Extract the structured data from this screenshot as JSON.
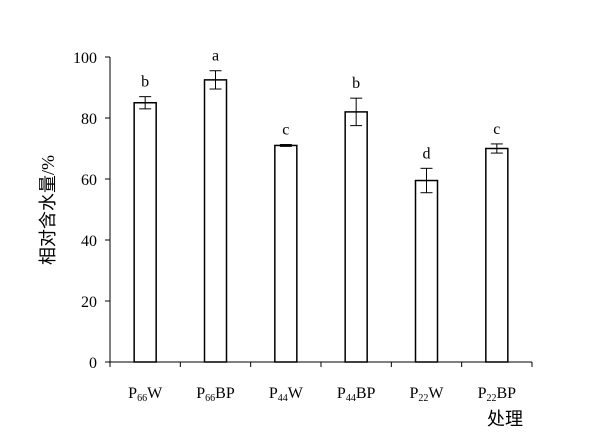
{
  "chart_data": {
    "type": "bar",
    "categories": [
      {
        "label": "P66W",
        "parts": [
          {
            "t": "P",
            "sub": false
          },
          {
            "t": "66",
            "sub": true
          },
          {
            "t": "W",
            "sub": false
          }
        ]
      },
      {
        "label": "P66BP",
        "parts": [
          {
            "t": "P",
            "sub": false
          },
          {
            "t": "66",
            "sub": true
          },
          {
            "t": "BP",
            "sub": false
          }
        ]
      },
      {
        "label": "P44W",
        "parts": [
          {
            "t": "P",
            "sub": false
          },
          {
            "t": "44",
            "sub": true
          },
          {
            "t": "W",
            "sub": false
          }
        ]
      },
      {
        "label": "P44BP",
        "parts": [
          {
            "t": "P",
            "sub": false
          },
          {
            "t": "44",
            "sub": true
          },
          {
            "t": "BP",
            "sub": false
          }
        ]
      },
      {
        "label": "P22W",
        "parts": [
          {
            "t": "P",
            "sub": false
          },
          {
            "t": "22",
            "sub": true
          },
          {
            "t": "W",
            "sub": false
          }
        ]
      },
      {
        "label": "P22BP",
        "parts": [
          {
            "t": "P",
            "sub": false
          },
          {
            "t": "22",
            "sub": true
          },
          {
            "t": "BP",
            "sub": false
          }
        ]
      }
    ],
    "values": [
      85.0,
      92.5,
      71.0,
      82.0,
      59.5,
      70.0
    ],
    "errors": [
      2.0,
      3.0,
      0.3,
      4.5,
      4.0,
      1.5
    ],
    "significance_letters": [
      "b",
      "a",
      "c",
      "b",
      "d",
      "c"
    ],
    "xlabel": "处理",
    "ylabel": "相对含水量/%",
    "ylim": [
      0,
      100
    ],
    "yticks": [
      0,
      20,
      40,
      60,
      80,
      100
    ],
    "grid": false,
    "bar_fill": "#ffffff",
    "bar_stroke": "#000000"
  }
}
